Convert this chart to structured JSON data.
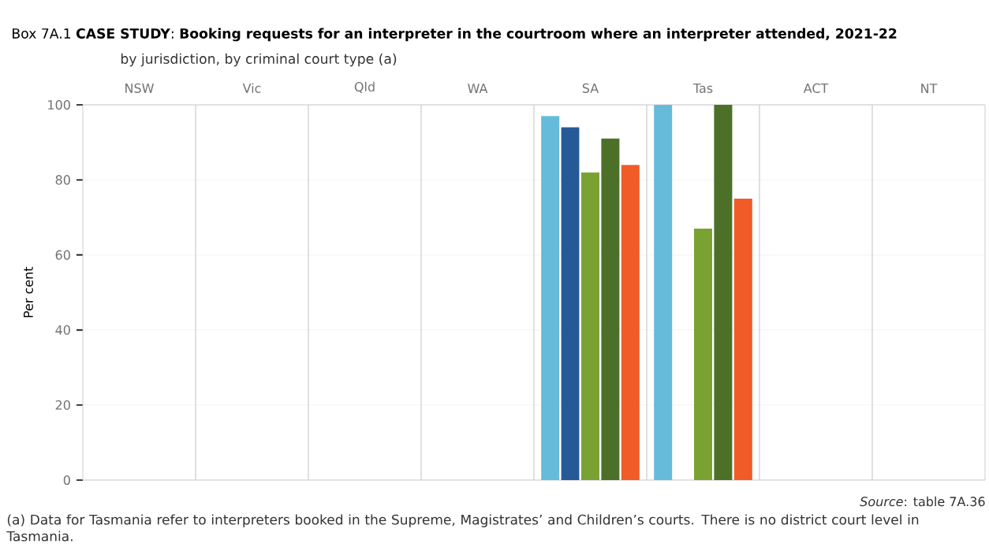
{
  "chart_data": {
    "type": "bar",
    "title": "Box 7A.1 **CASE STUDY**: **Booking requests for an interpreter in the courtroom where an interpreter attended, 2021-22**",
    "subtitle": "by jurisdiction, by criminal court type (a)",
    "ylabel": "Per cent",
    "categories": [
      "NSW",
      "Vic",
      "Qld",
      "WA",
      "SA",
      "Tas",
      "ACT",
      "NT"
    ],
    "series": [
      {
        "color": "#66bbdb",
        "values": [
          null,
          null,
          null,
          null,
          97,
          100,
          null,
          null
        ]
      },
      {
        "color": "#265a97",
        "values": [
          null,
          null,
          null,
          null,
          94,
          null,
          null,
          null
        ]
      },
      {
        "color": "#7aa232",
        "values": [
          null,
          null,
          null,
          null,
          82,
          67,
          null,
          null
        ]
      },
      {
        "color": "#4c7028",
        "values": [
          null,
          null,
          null,
          null,
          91,
          100,
          null,
          null
        ]
      },
      {
        "color": "#f05b27",
        "values": [
          null,
          null,
          null,
          null,
          84,
          75,
          null,
          null
        ]
      }
    ],
    "ylim": [
      0,
      100
    ],
    "yticks": [
      0,
      20,
      40,
      60,
      80,
      100
    ],
    "grid": "y",
    "annotations": [
      "*Source*: table 7A.36",
      "(a) Data for Tasmania refer to interpreters booked in the Supreme, Magistrates’ and Children’s courts. There is no district court level in Tasmania."
    ]
  }
}
